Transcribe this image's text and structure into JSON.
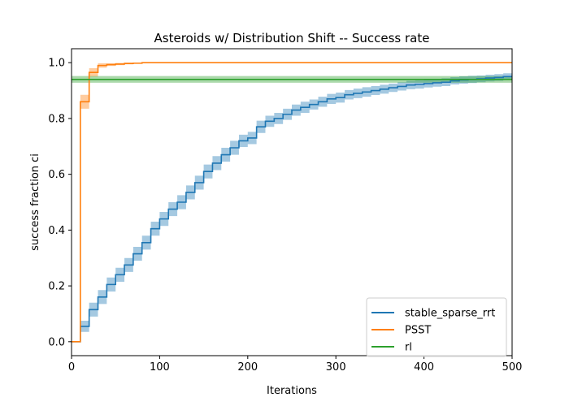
{
  "chart_data": {
    "type": "line",
    "title": "Asteroids w/ Distribution Shift -- Success rate",
    "xlabel": "Iterations",
    "ylabel": "success fraction ci",
    "xlim": [
      0,
      500
    ],
    "ylim": [
      -0.05,
      1.05
    ],
    "xticks": [
      0,
      100,
      200,
      300,
      400,
      500
    ],
    "yticks": [
      0.0,
      0.2,
      0.4,
      0.6,
      0.8,
      1.0
    ],
    "xtick_labels": [
      "0",
      "100",
      "200",
      "300",
      "400",
      "500"
    ],
    "ytick_labels": [
      "0.0",
      "0.2",
      "0.4",
      "0.6",
      "0.8",
      "1.0"
    ],
    "grid": false,
    "legend_position": "lower-right",
    "series": [
      {
        "name": "stable_sparse_rrt",
        "color": "#1f77b4",
        "step": true,
        "x": [
          0,
          10,
          20,
          30,
          40,
          50,
          60,
          70,
          80,
          90,
          100,
          110,
          120,
          130,
          140,
          150,
          160,
          170,
          180,
          190,
          200,
          210,
          220,
          230,
          240,
          250,
          260,
          270,
          280,
          290,
          300,
          310,
          320,
          330,
          340,
          350,
          360,
          370,
          380,
          390,
          400,
          410,
          420,
          430,
          440,
          450,
          460,
          470,
          480,
          490,
          500
        ],
        "y": [
          0.0,
          0.055,
          0.115,
          0.16,
          0.205,
          0.24,
          0.275,
          0.315,
          0.355,
          0.405,
          0.44,
          0.475,
          0.5,
          0.535,
          0.57,
          0.61,
          0.64,
          0.67,
          0.695,
          0.72,
          0.73,
          0.77,
          0.79,
          0.8,
          0.815,
          0.83,
          0.84,
          0.85,
          0.86,
          0.87,
          0.875,
          0.885,
          0.89,
          0.895,
          0.9,
          0.905,
          0.91,
          0.915,
          0.92,
          0.922,
          0.925,
          0.928,
          0.93,
          0.935,
          0.938,
          0.94,
          0.942,
          0.945,
          0.947,
          0.95,
          0.95
        ],
        "ci_halfwidth": [
          0.0,
          0.02,
          0.025,
          0.025,
          0.025,
          0.025,
          0.025,
          0.025,
          0.025,
          0.025,
          0.025,
          0.025,
          0.025,
          0.025,
          0.025,
          0.025,
          0.025,
          0.025,
          0.025,
          0.022,
          0.022,
          0.022,
          0.02,
          0.02,
          0.02,
          0.02,
          0.02,
          0.018,
          0.018,
          0.018,
          0.018,
          0.017,
          0.017,
          0.017,
          0.016,
          0.016,
          0.015,
          0.015,
          0.015,
          0.015,
          0.014,
          0.014,
          0.014,
          0.013,
          0.013,
          0.013,
          0.012,
          0.012,
          0.012,
          0.012,
          0.012
        ]
      },
      {
        "name": "PSST",
        "color": "#ff7f0e",
        "step": true,
        "x": [
          0,
          10,
          20,
          30,
          40,
          50,
          60,
          70,
          80,
          90,
          100,
          500
        ],
        "y": [
          0.0,
          0.86,
          0.965,
          0.99,
          0.993,
          0.995,
          0.997,
          0.998,
          1.0,
          1.0,
          1.0,
          1.0
        ],
        "ci_halfwidth": [
          0.0,
          0.025,
          0.015,
          0.008,
          0.005,
          0.004,
          0.003,
          0.002,
          0.0,
          0.0,
          0.0,
          0.0
        ]
      },
      {
        "name": "rl",
        "color": "#2ca02c",
        "step": false,
        "x": [
          0,
          500
        ],
        "y": [
          0.94,
          0.94
        ],
        "ci_halfwidth": [
          0.012,
          0.012
        ]
      }
    ]
  }
}
